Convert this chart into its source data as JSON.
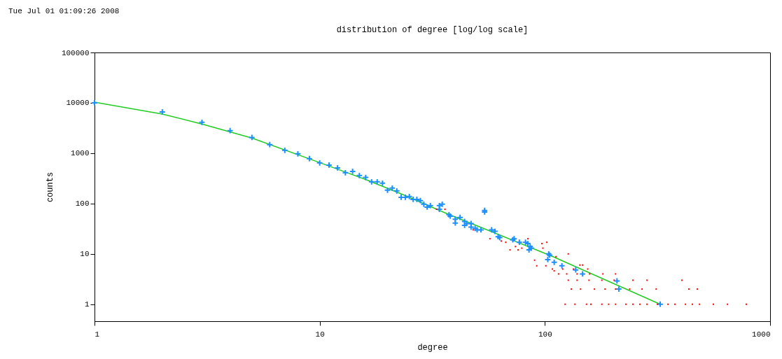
{
  "chart_data": {
    "type": "scatter",
    "title": "distribution of degree [log/log scale]",
    "xlabel": "degree",
    "ylabel": "counts",
    "annotations": [
      "Tue Jul 01 01:09:26 2008"
    ],
    "log": "xy",
    "xlim": [
      1,
      1000
    ],
    "ylim": [
      0.46,
      100000
    ],
    "xticks": [
      1,
      10,
      100,
      1000
    ],
    "yticks": [
      1,
      10,
      100,
      1000,
      10000,
      100000
    ],
    "series": [
      {
        "marker": "square",
        "color": "#ff0000",
        "x": [
          123,
          136,
          153,
          160,
          179,
          192,
          206,
          229,
          246,
          264,
          284,
          316,
          352,
          378,
          421,
          452,
          486,
          560,
          647,
          784,
          131,
          144,
          166,
          185,
          206,
          238,
          270,
          312,
          436,
          475,
          127,
          139,
          157,
          179,
          203,
          246,
          284,
          406,
          115,
          125,
          139,
          158,
          181,
          206,
          108,
          120,
          134,
          155,
          143,
          147,
          57,
          64,
          67,
          70,
          76,
          79,
          84,
          97,
          102,
          98,
          90,
          92,
          101,
          127,
          112,
          110,
          33,
          36,
          48,
          74
        ],
        "values": [
          1,
          1,
          1,
          1,
          1,
          1,
          1,
          1,
          1,
          1,
          1,
          1,
          1,
          1,
          1,
          1,
          1,
          1,
          1,
          1,
          2,
          2,
          2,
          2,
          2,
          2,
          2,
          2,
          2,
          2,
          3,
          3,
          3,
          3,
          3,
          3,
          3,
          3,
          4,
          4,
          4,
          4,
          4,
          4,
          5,
          5,
          5,
          5,
          6,
          6,
          20,
          18,
          17,
          12,
          12,
          13,
          20,
          16,
          17,
          13,
          7.5,
          5.8,
          5.8,
          10,
          8.8,
          4.6,
          77,
          77,
          30,
          14
        ]
      },
      {
        "marker": "cross",
        "color": "#1e8fff",
        "x": [
          1,
          2,
          3,
          4,
          5,
          6,
          7,
          8,
          9,
          10,
          11,
          12,
          13,
          14,
          15,
          16,
          17,
          18,
          19,
          20,
          21,
          22,
          23,
          24,
          25,
          26,
          27,
          28,
          29,
          30,
          31,
          34,
          35,
          34,
          37.5,
          38,
          40,
          40,
          42,
          44,
          44,
          45,
          47,
          47,
          49,
          50,
          52,
          54,
          54,
          58,
          60,
          62,
          63,
          72,
          73,
          77,
          82,
          84,
          85,
          86,
          87,
          103,
          104,
          105,
          110,
          119,
          137,
          147,
          209,
          213,
          325
        ],
        "values": [
          10000,
          6600,
          4100,
          2800,
          2050,
          1480,
          1140,
          970,
          780,
          640,
          580,
          510,
          410,
          435,
          360,
          330,
          270,
          270,
          253,
          184,
          202,
          178,
          133,
          133,
          138,
          121,
          121,
          114,
          97,
          85,
          91,
          91,
          97,
          77,
          60,
          56,
          41,
          49,
          53,
          44,
          37,
          40,
          40,
          34,
          32,
          30,
          30,
          68,
          73,
          30,
          28,
          22,
          21,
          19,
          20,
          17,
          17,
          16,
          12,
          14,
          13,
          7.7,
          10,
          9.4,
          6.8,
          5.8,
          4.8,
          4,
          2.9,
          2,
          1
        ]
      },
      {
        "type": "line",
        "marker": "none",
        "color": "#22cc22",
        "x": [
          1,
          2,
          3,
          5,
          10,
          16,
          23,
          37,
          60,
          110,
          325
        ],
        "values": [
          10300,
          6000,
          3800,
          2000,
          650,
          300,
          156,
          62,
          26,
          8.6,
          1
        ]
      }
    ]
  }
}
